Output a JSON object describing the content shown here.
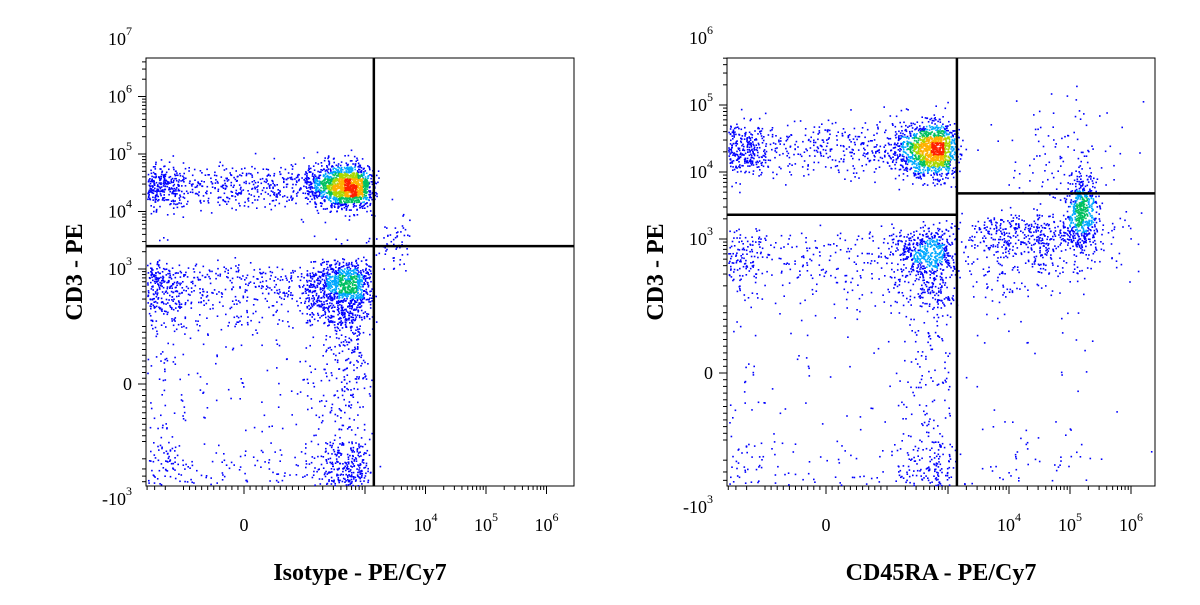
{
  "chart_data": [
    {
      "type": "scatter",
      "style": "pseudocolor-density",
      "xlabel": "Isotype - PE/Cy7",
      "ylabel": "CD3 - PE",
      "x_ticks": [
        {
          "value": 0,
          "base": "0",
          "exp": ""
        },
        {
          "value": 10000,
          "base": "10",
          "exp": "4"
        },
        {
          "value": 100000,
          "base": "10",
          "exp": "5"
        },
        {
          "value": 1000000,
          "base": "10",
          "exp": "6"
        }
      ],
      "y_ticks": [
        {
          "value": -1000,
          "base": "-10",
          "exp": "3"
        },
        {
          "value": 0,
          "base": "0",
          "exp": ""
        },
        {
          "value": 1000,
          "base": "10",
          "exp": "3"
        },
        {
          "value": 10000,
          "base": "10",
          "exp": "4"
        },
        {
          "value": 100000,
          "base": "10",
          "exp": "5"
        },
        {
          "value": 1000000,
          "base": "10",
          "exp": "6"
        },
        {
          "value": 10000000,
          "base": "10",
          "exp": "7"
        }
      ],
      "populations": [
        {
          "cx": 300,
          "cy": 28000,
          "sx": 420,
          "sy": 0.19,
          "count": 2300
        },
        {
          "cx": 250,
          "cy": 300,
          "sx": 400,
          "sy": 420,
          "count": 2600
        },
        {
          "cx": 2500,
          "cy": 3000,
          "sx": 1500,
          "sy": 0.25,
          "count": 80
        }
      ],
      "quadrant_gate": {
        "x": 1400,
        "y": 2500
      }
    },
    {
      "type": "scatter",
      "style": "pseudocolor-density",
      "xlabel": "CD45RA - PE/Cy7",
      "ylabel": "CD3 - PE",
      "x_ticks": [
        {
          "value": 0,
          "base": "0",
          "exp": ""
        },
        {
          "value": 10000,
          "base": "10",
          "exp": "4"
        },
        {
          "value": 100000,
          "base": "10",
          "exp": "5"
        },
        {
          "value": 1000000,
          "base": "10",
          "exp": "6"
        }
      ],
      "y_ticks": [
        {
          "value": -1000,
          "base": "-10",
          "exp": "3"
        },
        {
          "value": 0,
          "base": "0",
          "exp": ""
        },
        {
          "value": 1000,
          "base": "10",
          "exp": "3"
        },
        {
          "value": 10000,
          "base": "10",
          "exp": "4"
        },
        {
          "value": 100000,
          "base": "10",
          "exp": "5"
        },
        {
          "value": 1000000,
          "base": "10",
          "exp": "6"
        }
      ],
      "populations": [
        {
          "cx": 300,
          "cy": 22000,
          "sx": 450,
          "sy": 0.2,
          "count": 2000
        },
        {
          "cx": 250,
          "cy": 300,
          "sx": 420,
          "sy": 480,
          "count": 1500
        },
        {
          "cx": 150000,
          "cy": 2500,
          "sx": 0.12,
          "sy": 0.3,
          "count": 500
        },
        {
          "cx": 20000,
          "cy": 900,
          "sx": 0.7,
          "sy": 700,
          "count": 700
        },
        {
          "cx": 60000,
          "cy": 12000,
          "sx": 0.55,
          "sy": 0.45,
          "count": 120
        }
      ],
      "quadrant_gate": {
        "x": 1400,
        "y_left": 2300,
        "y_right": 4800
      }
    }
  ],
  "colors": {
    "density_low": "#0000ff",
    "density_mid1": "#00a8ff",
    "density_mid2": "#00c060",
    "density_mid3": "#a8d800",
    "density_high1": "#ffb000",
    "density_high2": "#ff2000"
  }
}
